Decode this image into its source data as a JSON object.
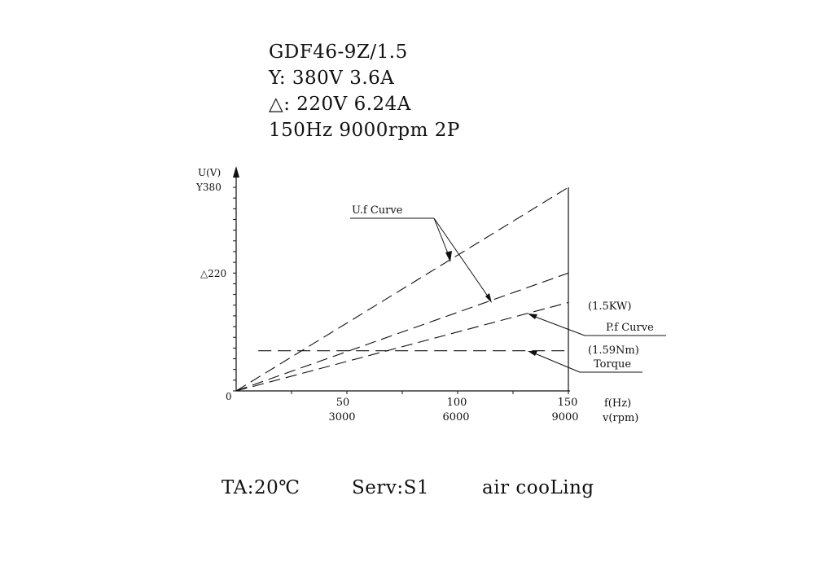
{
  "specs": {
    "model": "GDF46-9Z/1.5",
    "star": "Y: 380V 3.6A",
    "delta": "△: 220V 6.24A",
    "freq": "150Hz 9000rpm 2P"
  },
  "footer": {
    "temp": "TA:20℃",
    "serv": "Serv:S1",
    "cooling": "air cooLing"
  },
  "chart_data": {
    "type": "line",
    "y_axis_label": "U(V)",
    "y_ticks": [
      "Y380",
      "△220",
      "0"
    ],
    "x_axis_label_hz": "f(Hz)",
    "x_axis_label_rpm": "v(rpm)",
    "x_ticks_hz": [
      "50",
      "100",
      "150"
    ],
    "x_ticks_rpm": [
      "3000",
      "6000",
      "9000"
    ],
    "xlim_hz": [
      0,
      150
    ],
    "ylim_v": [
      0,
      380
    ],
    "series": [
      {
        "key": "uf_star",
        "x": [
          0,
          150
        ],
        "y": [
          0,
          380
        ]
      },
      {
        "key": "uf_delta",
        "x": [
          0,
          150
        ],
        "y": [
          0,
          220
        ]
      },
      {
        "key": "power",
        "x": [
          0,
          150
        ],
        "y": [
          0,
          165
        ]
      },
      {
        "key": "torque",
        "x": [
          10,
          150
        ],
        "y": [
          75,
          75
        ]
      }
    ],
    "annotations": {
      "uf_curve": "U.f Curve",
      "power_value": "(1.5KW)",
      "pf_curve": "P.f Curve",
      "torque_value": "(1.59Nm)",
      "torque": "Torque"
    }
  }
}
